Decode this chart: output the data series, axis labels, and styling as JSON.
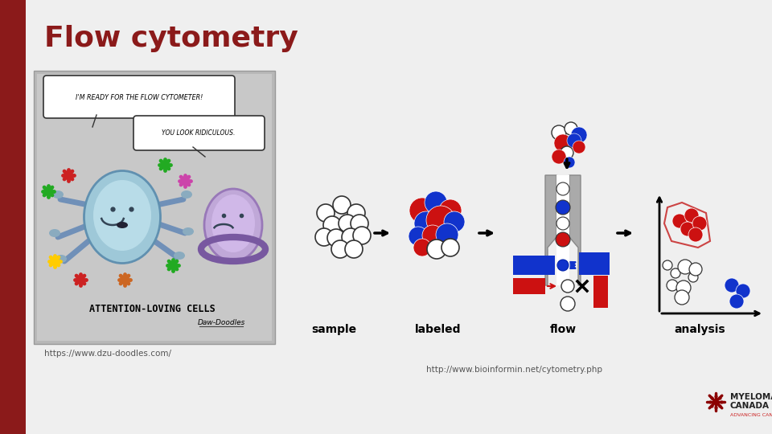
{
  "title": "Flow cytometry",
  "title_color": "#8B1A1A",
  "title_fontsize": 26,
  "title_weight": "bold",
  "bg_top_color": "#c8c8c8",
  "bg_bottom_color": "#e0e0e0",
  "content_bg": "#f0f0f0",
  "left_bar_color": "#8B1A1A",
  "left_bar_width": 32,
  "cartoon_box_color": "#b8b8b8",
  "url_left": "https://www.dzu-doodles.com/",
  "url_right": "http://www.bioinformin.net/cytometry.php",
  "url_fontsize": 7.5,
  "url_color": "#555555",
  "myeloma_text1": "MYELOMA",
  "myeloma_text2": "CANADA",
  "myeloma_sub": "ADVANCING CANADA UNITED",
  "label_sample": "sample",
  "label_labeled": "labeled",
  "label_flow": "flow",
  "label_analysis": "analysis",
  "label_fontsize": 10,
  "label_fontweight": "bold",
  "red_cell": "#cc1111",
  "blue_cell": "#1133cc",
  "gray_tube": "#aaaaaa",
  "dark_gray_tube": "#888888"
}
